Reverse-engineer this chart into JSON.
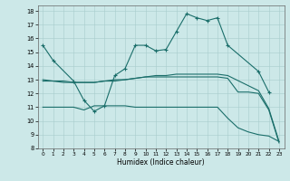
{
  "xlabel": "Humidex (Indice chaleur)",
  "background_color": "#cce8e8",
  "line_color": "#1a6e6a",
  "xlim": [
    -0.5,
    23.5
  ],
  "ylim": [
    8,
    18.4
  ],
  "xticks": [
    0,
    1,
    2,
    3,
    4,
    5,
    6,
    7,
    8,
    9,
    10,
    11,
    12,
    13,
    14,
    15,
    16,
    17,
    18,
    19,
    20,
    21,
    22,
    23
  ],
  "yticks": [
    8,
    9,
    10,
    11,
    12,
    13,
    14,
    15,
    16,
    17,
    18
  ],
  "line1_x": [
    0,
    1,
    3,
    4,
    5,
    6,
    7,
    8,
    9,
    10,
    11,
    12,
    13,
    14,
    15,
    16,
    17,
    18,
    21,
    22
  ],
  "line1_y": [
    15.5,
    14.4,
    12.9,
    11.5,
    10.7,
    11.1,
    13.3,
    13.8,
    15.5,
    15.5,
    15.1,
    15.2,
    16.5,
    17.8,
    17.5,
    17.3,
    17.5,
    15.5,
    13.6,
    12.1
  ],
  "line2_x": [
    0,
    1,
    2,
    3,
    4,
    5,
    6,
    7,
    8,
    9,
    10,
    11,
    12,
    13,
    14,
    15,
    16,
    17,
    18,
    21,
    22,
    23
  ],
  "line2_y": [
    13.0,
    12.9,
    12.9,
    12.8,
    12.8,
    12.8,
    12.9,
    12.9,
    13.0,
    13.1,
    13.2,
    13.3,
    13.3,
    13.4,
    13.4,
    13.4,
    13.4,
    13.4,
    13.3,
    12.2,
    10.9,
    8.5
  ],
  "line3_x": [
    0,
    1,
    2,
    3,
    4,
    5,
    6,
    7,
    8,
    9,
    10,
    11,
    12,
    13,
    14,
    15,
    16,
    17,
    18,
    19,
    20,
    21,
    22,
    23
  ],
  "line3_y": [
    12.9,
    12.9,
    12.8,
    12.8,
    12.8,
    12.8,
    12.9,
    13.0,
    13.0,
    13.1,
    13.2,
    13.2,
    13.2,
    13.2,
    13.2,
    13.2,
    13.2,
    13.2,
    13.1,
    12.1,
    12.1,
    12.0,
    10.8,
    8.4
  ],
  "line4_x": [
    0,
    1,
    2,
    3,
    4,
    5,
    6,
    7,
    8,
    9,
    10,
    11,
    12,
    13,
    14,
    15,
    16,
    17,
    18,
    19,
    20,
    21,
    22,
    23
  ],
  "line4_y": [
    11.0,
    11.0,
    11.0,
    11.0,
    10.8,
    11.1,
    11.1,
    11.1,
    11.1,
    11.0,
    11.0,
    11.0,
    11.0,
    11.0,
    11.0,
    11.0,
    11.0,
    11.0,
    10.2,
    9.5,
    9.2,
    9.0,
    8.9,
    8.5
  ]
}
